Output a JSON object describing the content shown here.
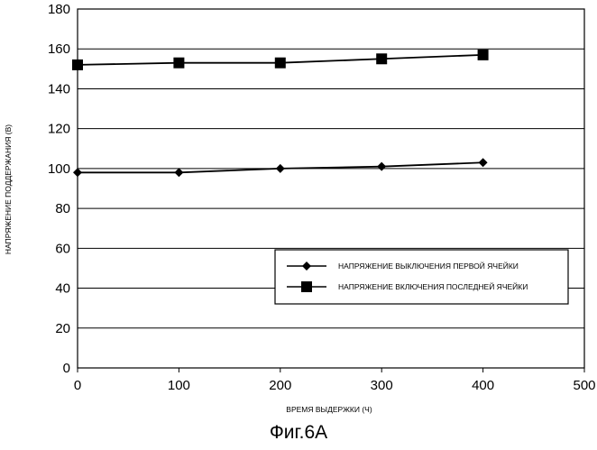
{
  "caption": "Фиг.6A",
  "chart_data": {
    "type": "line",
    "xlabel": "ВРЕМЯ ВЫДЕРЖКИ (Ч)",
    "ylabel": "НАПРЯЖЕНИЕ ПОДДЕРЖАНИЯ (В)",
    "xlim": [
      0,
      500
    ],
    "ylim": [
      0,
      180
    ],
    "xticks": [
      0,
      100,
      200,
      300,
      400,
      500
    ],
    "yticks": [
      0,
      20,
      40,
      60,
      80,
      100,
      120,
      140,
      160,
      180
    ],
    "grid": "horizontal",
    "legend_position": "lower-right",
    "x": [
      0,
      100,
      200,
      300,
      400
    ],
    "series": [
      {
        "name": "НАПРЯЖЕНИЕ ВЫКЛЮЧЕНИЯ ПЕРВОЙ ЯЧЕЙКИ",
        "marker": "diamond",
        "color": "#000000",
        "values": [
          98,
          98,
          100,
          101,
          103
        ]
      },
      {
        "name": "НАПРЯЖЕНИЕ ВКЛЮЧЕНИЯ ПОСЛЕДНЕЙ ЯЧЕЙКИ",
        "marker": "square",
        "color": "#000000",
        "values": [
          152,
          153,
          153,
          155,
          157
        ]
      }
    ]
  }
}
